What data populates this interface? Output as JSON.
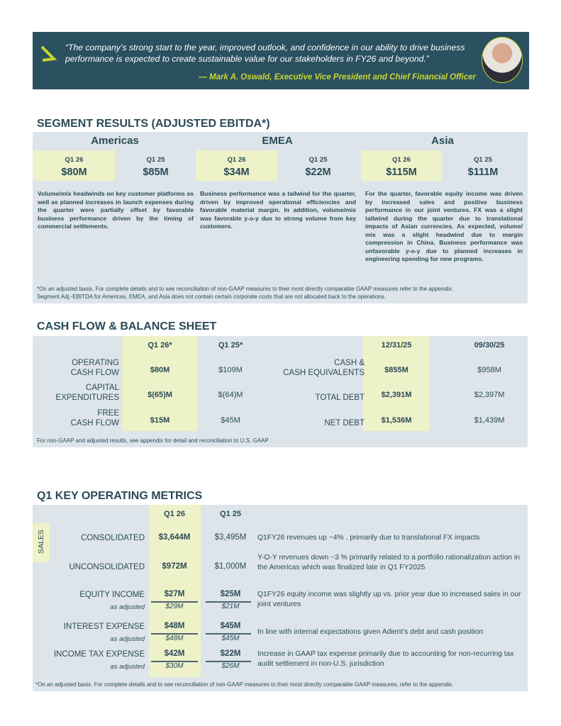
{
  "quote": {
    "text": "“The company’s strong start to the year, improved outlook, and confidence in our ability to drive business performance is expected to create sustainable value for our stakeholders in FY26 and beyond.”",
    "author": "— Mark A. Oswald, Executive Vice President and Chief Financial Officer"
  },
  "segment": {
    "title": "SEGMENT RESULTS (ADJUSTED EBITDA*)",
    "regions": [
      {
        "name": "Americas",
        "cur_label": "Q1 26",
        "cur": "$80M",
        "prev_label": "Q1 25",
        "prev": "$85M",
        "text": "Volume/mix headwinds on key customer platforms as well as planned increases in launch expenses during the quarter were partially offset by favorable business performance driven by the timing of commercial settlements."
      },
      {
        "name": "EMEA",
        "cur_label": "Q1 26",
        "cur": "$34M",
        "prev_label": "Q1 25",
        "prev": "$22M",
        "text": "Business performance was a tailwind for the quarter, driven by improved operational efficiencies and favorable material margin. In addition, volume/mix was favorable y-o-y due to strong volume from key customers."
      },
      {
        "name": "Asia",
        "cur_label": "Q1 26",
        "cur": "$115M",
        "prev_label": "Q1 25",
        "prev": "$111M",
        "text": "For the quarter, favorable equity income was driven by increased sales and positive business performance in our joint ventures. FX was a slight tailwind during the quarter due to translational impacts of Asian currencies. As expected, volume/ mix was a slight headwind due to margin compression in China. Business performance was unfavorable y-o-y due to planned increases in engineering spending for new programs."
      }
    ],
    "footnote1": "*On an adjusted basis. For complete details and to see reconciliation of non-GAAP measures to their most directly comparable GAAP measures refer to the appendix.",
    "footnote2": "Segment Adj.-EBITDA for Americas, EMEA, and Asia does not contain certain corporate costs that are not allocated back to the operations."
  },
  "cash": {
    "title": "CASH FLOW & BALANCE SHEET",
    "h1": "Q1 26*",
    "h2": "Q1 25*",
    "h3": "12/31/25",
    "h4": "09/30/25",
    "left": [
      {
        "label1": "OPERATING",
        "label2": "CASH FLOW",
        "cur": "$80M",
        "prev": "$109M"
      },
      {
        "label1": "CAPITAL",
        "label2": "EXPENDITURES",
        "cur": "$(65)M",
        "prev": "$(64)M"
      },
      {
        "label1": "FREE",
        "label2": "CASH FLOW",
        "cur": "$15M",
        "prev": "$45M"
      }
    ],
    "right": [
      {
        "label1": "CASH &",
        "label2": "CASH EQUIVALENTS",
        "cur": "$855M",
        "prev": "$958M"
      },
      {
        "label1": "",
        "label2": "TOTAL DEBT",
        "cur": "$2,391M",
        "prev": "$2,397M"
      },
      {
        "label1": "",
        "label2": "NET DEBT",
        "cur": "$1,536M",
        "prev": "$1,439M"
      }
    ],
    "footnote": "For non-GAAP and adjusted results, see appendix for detail and reconciliation to U.S. GAAP"
  },
  "metrics": {
    "title": "Q1 KEY OPERATING METRICS",
    "h1": "Q1 26",
    "h2": "Q1 25",
    "sales_label": "SALES",
    "sales": [
      {
        "label": "CONSOLIDATED",
        "cur": "$3,644M",
        "prev": "$3,495M",
        "desc": "Q1FY26 revenues up ~4% , primarily due to translational FX impacts"
      },
      {
        "label": "UNCONSOLIDATED",
        "cur": "$972M",
        "prev": "$1,000M",
        "desc": "Y-O-Y revenues down ~3 % primarily related to a portfolio rationalization action in the Americas which was finalized late in Q1 FY2025"
      }
    ],
    "adj_label": "as adjusted",
    "other": [
      {
        "label": "EQUITY INCOME",
        "cur": "$27M",
        "prev": "$25M",
        "cur_adj": "$29M",
        "prev_adj": "$21M",
        "desc": "Q1FY26 equity income was slightly up vs. prior year due to increased sales in our joint ventures"
      },
      {
        "label": "INTEREST EXPENSE",
        "cur": "$48M",
        "prev": "$45M",
        "cur_adj": "$48M",
        "prev_adj": "$45M",
        "desc": "In line with internal expectations given Adient’s debt and cash position"
      },
      {
        "label": "INCOME TAX EXPENSE",
        "cur": "$42M",
        "prev": "$22M",
        "cur_adj": "$30M",
        "prev_adj": "$26M",
        "desc": "Increase in GAAP tax expense primarily due to accounting for non-recurring tax audit settlement in non-U.S. jurisdiction"
      }
    ],
    "footnote": "*On an adjusted basis. For complete details and to see reconciliation of non-GAAP measures to their most directly comparable GAAP measures, refer to the appendix."
  }
}
